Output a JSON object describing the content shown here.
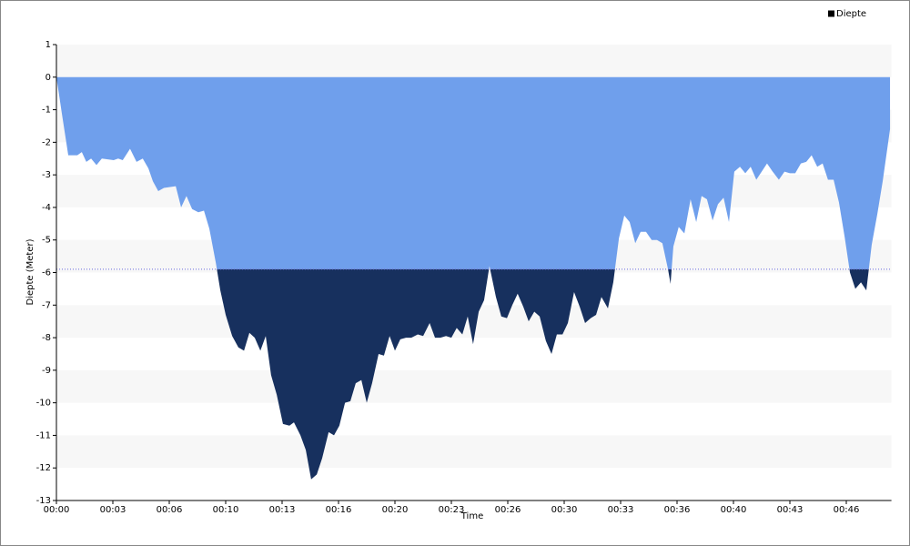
{
  "chart_data": {
    "type": "area",
    "ylabel": "Diepte (Meter)",
    "xlabel": "Time",
    "x": [
      0,
      19,
      42,
      74,
      90,
      106,
      123,
      142,
      161,
      203,
      219,
      235,
      261,
      284,
      306,
      326,
      342,
      361,
      381,
      423,
      442,
      461,
      481,
      503,
      523,
      542,
      565,
      581,
      600,
      623,
      645,
      665,
      684,
      703,
      723,
      742,
      761,
      781,
      803,
      826,
      842,
      865,
      884,
      903,
      923,
      942,
      965,
      984,
      1003,
      1023,
      1042,
      1061,
      1081,
      1100,
      1119,
      1142,
      1161,
      1181,
      1200,
      1219,
      1239,
      1258,
      1281,
      1300,
      1323,
      1342,
      1361,
      1381,
      1400,
      1419,
      1439,
      1458,
      1477,
      1497,
      1516,
      1535,
      1558,
      1577,
      1597,
      1616,
      1635,
      1655,
      1674,
      1694,
      1713,
      1735,
      1755,
      1774,
      1794,
      1813,
      1835,
      1855,
      1874,
      1894,
      1913,
      1932,
      1955,
      1974,
      1994,
      2013,
      2032,
      2052,
      2071,
      2090,
      2110,
      2129,
      2148,
      2168,
      2177,
      2187,
      2206,
      2226,
      2248,
      2268,
      2287,
      2306,
      2326,
      2345,
      2365,
      2384,
      2403,
      2423,
      2442,
      2461,
      2481,
      2500,
      2519,
      2539,
      2561,
      2581,
      2600,
      2619,
      2639,
      2658,
      2677,
      2697,
      2716,
      2735,
      2755,
      2774,
      2794,
      2813,
      2832,
      2852,
      2871,
      2890,
      2910,
      2929,
      2955
    ],
    "series": [
      {
        "name": "Diepte",
        "color": "#6f9fec",
        "values": [
          0,
          -1.1,
          -2.4,
          -2.4,
          -2.3,
          -2.6,
          -2.5,
          -2.7,
          -2.5,
          -2.55,
          -2.5,
          -2.55,
          -2.2,
          -2.6,
          -2.5,
          -2.8,
          -3.2,
          -3.5,
          -3.4,
          -3.35,
          -4.0,
          -3.65,
          -4.05,
          -4.15,
          -4.1,
          -4.65,
          -5.7,
          -6.55,
          -7.3,
          -7.95,
          -8.3,
          -8.4,
          -7.85,
          -8.0,
          -8.4,
          -7.95,
          -9.15,
          -9.75,
          -10.65,
          -10.7,
          -10.6,
          -11.0,
          -11.45,
          -12.35,
          -12.2,
          -11.7,
          -10.9,
          -11.0,
          -10.7,
          -10.0,
          -9.95,
          -9.4,
          -9.3,
          -10.0,
          -9.4,
          -8.5,
          -8.55,
          -7.95,
          -8.4,
          -8.05,
          -8.0,
          -8.0,
          -7.9,
          -7.95,
          -7.55,
          -8.0,
          -8.0,
          -7.95,
          -8.0,
          -7.7,
          -7.9,
          -7.35,
          -8.2,
          -7.2,
          -6.85,
          -5.8,
          -6.75,
          -7.35,
          -7.4,
          -7.0,
          -6.65,
          -7.05,
          -7.5,
          -7.2,
          -7.35,
          -8.1,
          -8.5,
          -7.9,
          -7.9,
          -7.55,
          -6.6,
          -7.05,
          -7.55,
          -7.4,
          -7.3,
          -6.75,
          -7.1,
          -6.3,
          -4.95,
          -4.25,
          -4.45,
          -5.1,
          -4.75,
          -4.75,
          -5.0,
          -5.0,
          -5.1,
          -5.9,
          -6.35,
          -5.2,
          -4.6,
          -4.8,
          -3.75,
          -4.45,
          -3.65,
          -3.75,
          -4.4,
          -3.9,
          -3.7,
          -4.45,
          -2.9,
          -2.75,
          -2.95,
          -2.75,
          -3.15,
          -2.9,
          -2.65,
          -2.9,
          -3.15,
          -2.9,
          -2.95,
          -2.95,
          -2.65,
          -2.6,
          -2.4,
          -2.75,
          -2.65,
          -3.15,
          -3.15,
          -3.85,
          -4.9,
          -6.0,
          -6.5,
          -6.3,
          -6.55,
          -5.15,
          -4.2,
          -3.2,
          -1.6
        ]
      }
    ],
    "threshold": {
      "value": -5.9,
      "color": "#17305e"
    },
    "legend_color": "#000000",
    "xlim": [
      0,
      2960
    ],
    "ylim": [
      -13,
      1
    ],
    "xticks": [
      {
        "value": 0,
        "label": "00:00"
      },
      {
        "value": 200,
        "label": "00:03"
      },
      {
        "value": 400,
        "label": "00:06"
      },
      {
        "value": 600,
        "label": "00:10"
      },
      {
        "value": 800,
        "label": "00:13"
      },
      {
        "value": 1000,
        "label": "00:16"
      },
      {
        "value": 1200,
        "label": "00:20"
      },
      {
        "value": 1400,
        "label": "00:23"
      },
      {
        "value": 1600,
        "label": "00:26"
      },
      {
        "value": 1800,
        "label": "00:30"
      },
      {
        "value": 2000,
        "label": "00:33"
      },
      {
        "value": 2200,
        "label": "00:36"
      },
      {
        "value": 2400,
        "label": "00:40"
      },
      {
        "value": 2600,
        "label": "00:43"
      },
      {
        "value": 2800,
        "label": "00:46"
      }
    ],
    "yticks": [
      1,
      0,
      -1,
      -2,
      -3,
      -4,
      -5,
      -6,
      -7,
      -8,
      -9,
      -10,
      -11,
      -12,
      -13
    ],
    "grid": "bands",
    "legend": "top-right"
  }
}
